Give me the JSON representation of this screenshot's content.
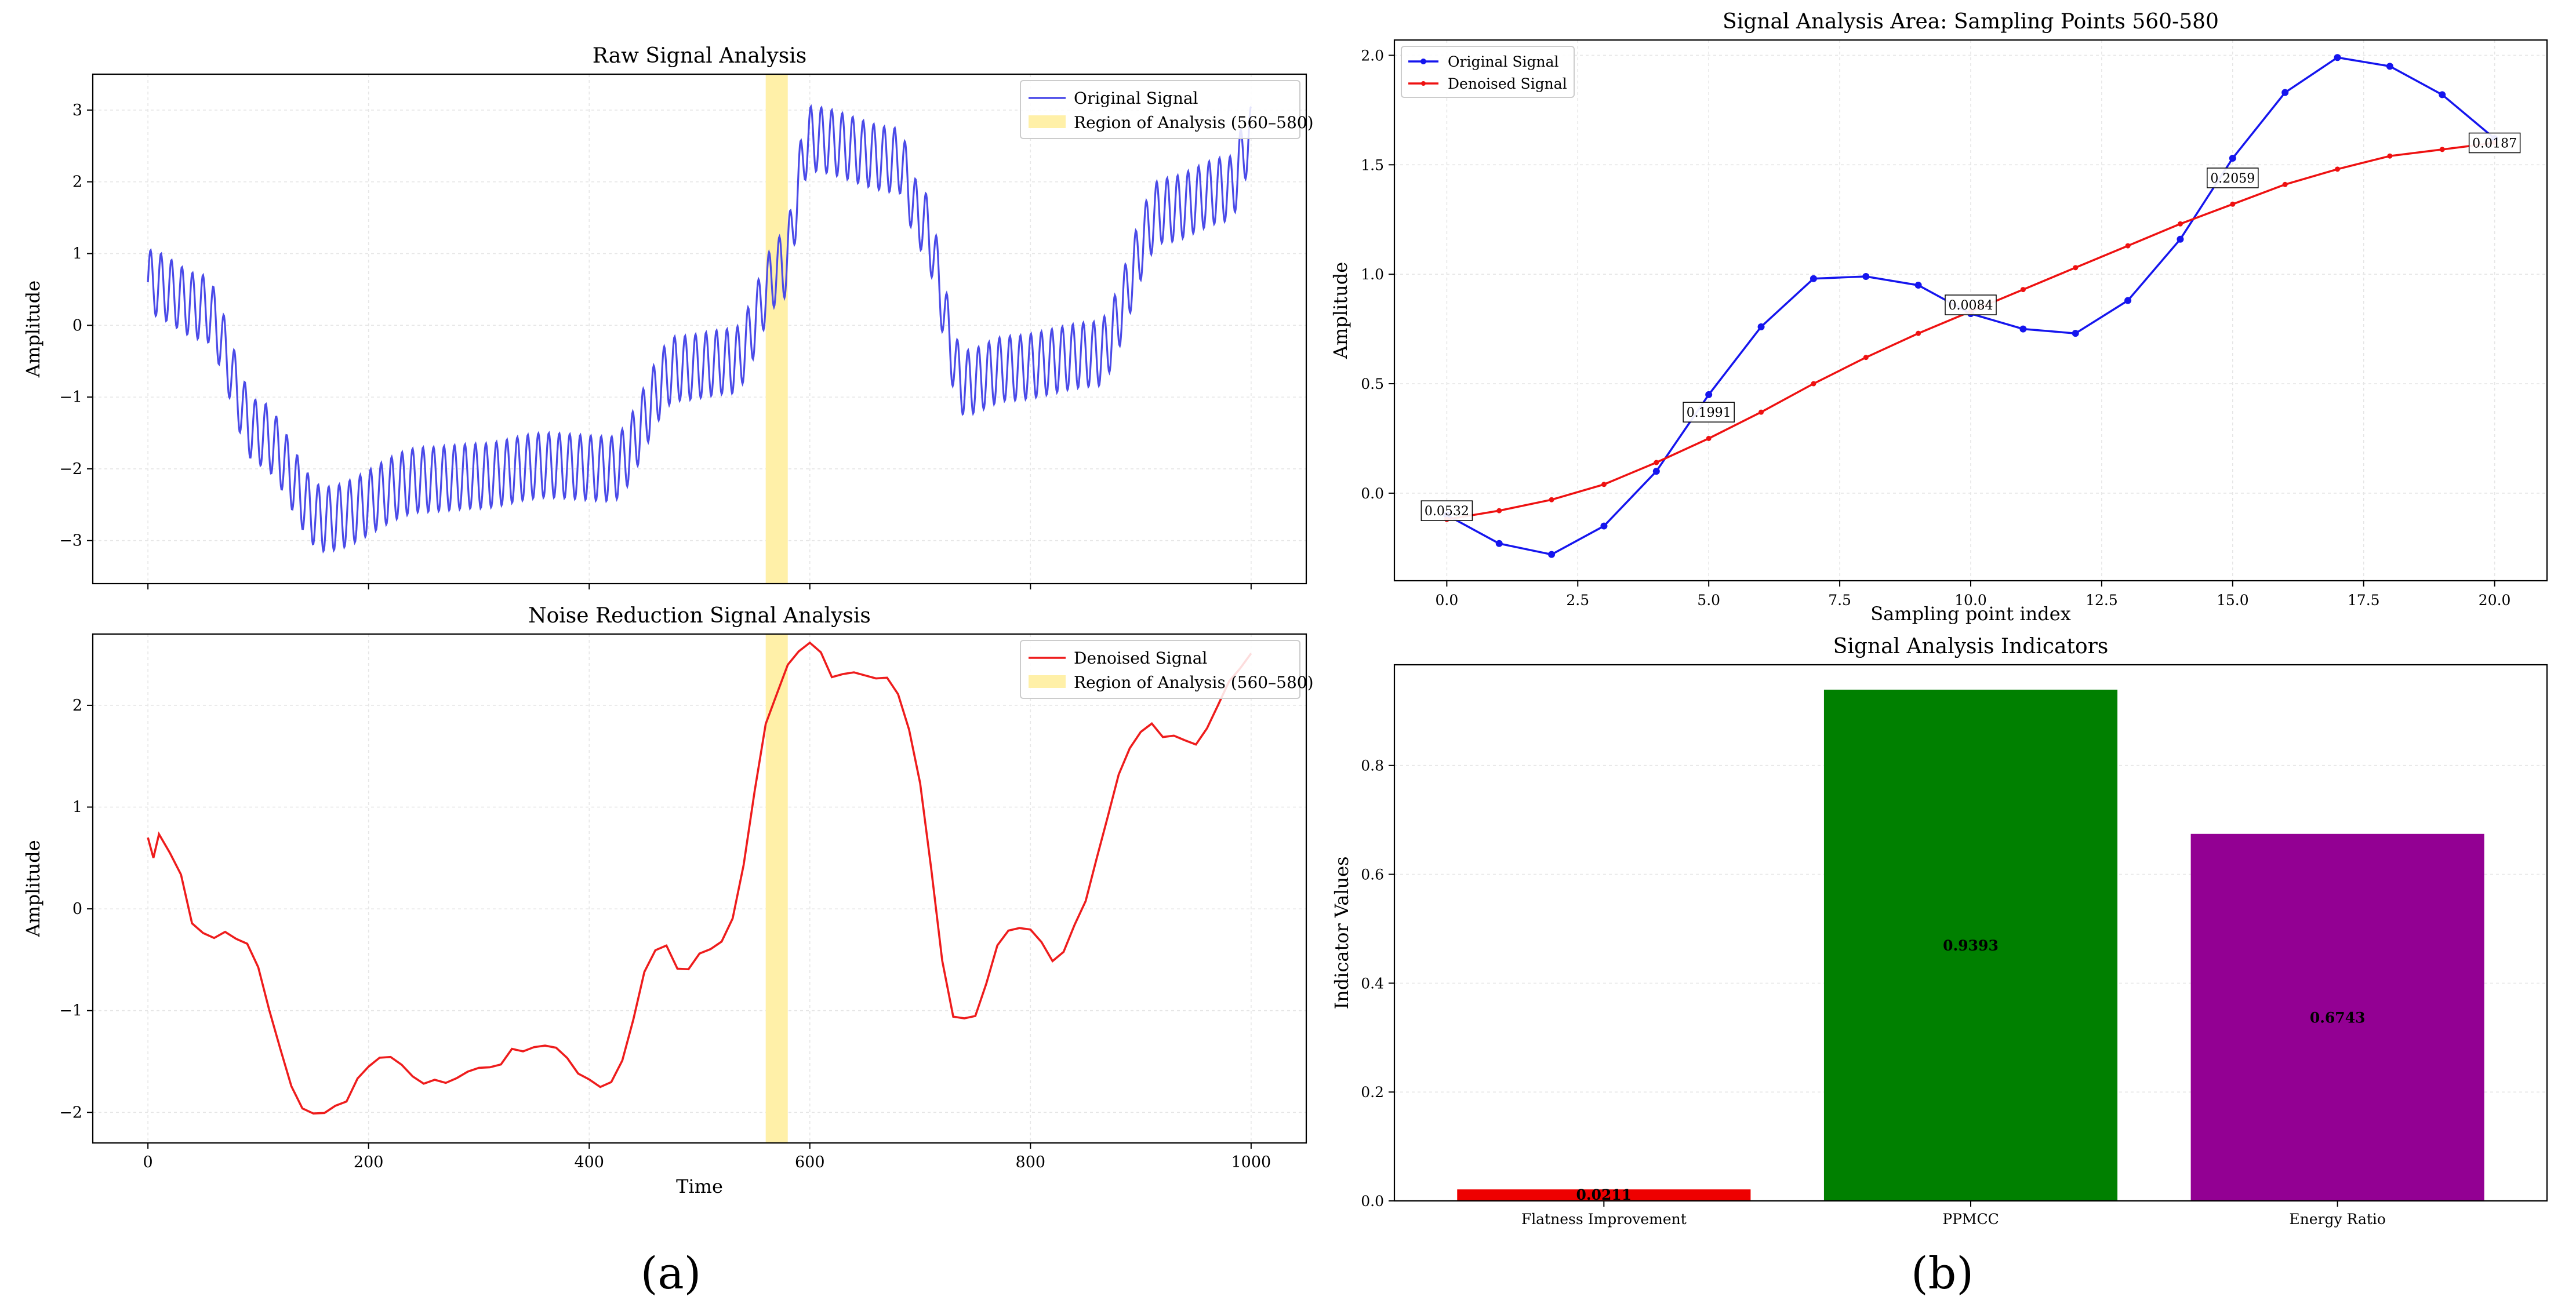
{
  "figure": {
    "label_a": "(a)",
    "label_b": "(b)"
  },
  "colors": {
    "original": "#4a4ae8",
    "denoised": "#ee1c1c",
    "region": "#fff0a8",
    "blue": "#1515ee",
    "red": "#ee1111",
    "green": "#008000",
    "purple": "#930093"
  },
  "chart_data": [
    {
      "id": "raw",
      "type": "line",
      "title": "Raw Signal Analysis",
      "xlabel": "",
      "ylabel": "Amplitude",
      "xlim": [
        -50,
        1050
      ],
      "ylim": [
        -3.6,
        3.5
      ],
      "xticks": [
        0,
        200,
        400,
        600,
        800,
        1000
      ],
      "xtick_labels_visible": false,
      "yticks": [
        -3,
        -2,
        -1,
        0,
        1,
        2,
        3
      ],
      "ytick_labels": [
        "−3",
        "−2",
        "−1",
        "0",
        "1",
        "2",
        "3"
      ],
      "region": [
        560,
        580
      ],
      "legend": [
        "Original Signal",
        "Region of Analysis (560–580)"
      ],
      "series": [
        {
          "name": "Original Signal",
          "base_x": [
            0,
            50,
            100,
            160,
            250,
            300,
            360,
            420,
            480,
            530,
            575,
            600,
            680,
            700,
            740,
            780,
            860,
            920,
            980,
            1000
          ],
          "base_y": [
            0.6,
            0.25,
            -1.5,
            -2.7,
            -2.15,
            -2.1,
            -1.95,
            -2.0,
            -0.6,
            -0.5,
            0.8,
            2.6,
            2.3,
            1.5,
            -0.8,
            -0.6,
            -0.4,
            1.6,
            1.9,
            2.6
          ],
          "oscillation_amplitude": 0.45,
          "oscillation_period": 9.5
        }
      ]
    },
    {
      "id": "denoised",
      "type": "line",
      "title": "Noise Reduction Signal Analysis",
      "xlabel": "Time",
      "ylabel": "Amplitude",
      "xlim": [
        -50,
        1050
      ],
      "ylim": [
        -2.3,
        2.7
      ],
      "xticks": [
        0,
        200,
        400,
        600,
        800,
        1000
      ],
      "xtick_labels": [
        "0",
        "200",
        "400",
        "600",
        "800",
        "1000"
      ],
      "yticks": [
        -2,
        -1,
        0,
        1,
        2
      ],
      "ytick_labels": [
        "−2",
        "−1",
        "0",
        "1",
        "2"
      ],
      "region": [
        560,
        580
      ],
      "legend": [
        "Denoised Signal",
        "Region of Analysis (560–580)"
      ],
      "series": [
        {
          "name": "Denoised Signal",
          "x": [
            0,
            5,
            10,
            20,
            30,
            40,
            50,
            60,
            70,
            80,
            90,
            100,
            110,
            120,
            130,
            140,
            150,
            160,
            170,
            180,
            190,
            200,
            210,
            220,
            230,
            240,
            250,
            260,
            270,
            280,
            290,
            300,
            310,
            320,
            330,
            340,
            350,
            360,
            370,
            380,
            390,
            400,
            410,
            420,
            430,
            440,
            450,
            460,
            470,
            480,
            490,
            500,
            510,
            520,
            530,
            540,
            550,
            560,
            570,
            580,
            590,
            600,
            610,
            620,
            630,
            640,
            650,
            660,
            670,
            680,
            690,
            700,
            710,
            720,
            730,
            740,
            750,
            760,
            770,
            780,
            790,
            800,
            810,
            820,
            830,
            840,
            850,
            860,
            870,
            880,
            890,
            900,
            910,
            920,
            930,
            940,
            950,
            960,
            970,
            980,
            990,
            1000
          ],
          "y": [
            0.7,
            0.5,
            0.75,
            0.55,
            0.3,
            -0.1,
            -0.25,
            -0.3,
            -0.22,
            -0.28,
            -0.35,
            -0.6,
            -0.95,
            -1.4,
            -1.75,
            -1.95,
            -2.0,
            -2.02,
            -1.95,
            -1.85,
            -1.7,
            -1.55,
            -1.45,
            -1.45,
            -1.55,
            -1.65,
            -1.68,
            -1.72,
            -1.7,
            -1.65,
            -1.6,
            -1.58,
            -1.55,
            -1.5,
            -1.42,
            -1.38,
            -1.35,
            -1.35,
            -1.38,
            -1.45,
            -1.6,
            -1.72,
            -1.72,
            -1.7,
            -1.5,
            -1.1,
            -0.6,
            -0.4,
            -0.4,
            -0.55,
            -0.6,
            -0.45,
            -0.4,
            -0.3,
            -0.1,
            0.4,
            1.2,
            1.8,
            2.1,
            2.4,
            2.55,
            2.6,
            2.5,
            2.32,
            2.28,
            2.32,
            2.3,
            2.28,
            2.25,
            2.1,
            1.8,
            1.2,
            0.4,
            -0.5,
            -1.05,
            -1.1,
            -1.05,
            -0.7,
            -0.4,
            -0.2,
            -0.18,
            -0.2,
            -0.35,
            -0.5,
            -0.4,
            -0.2,
            0.1,
            0.5,
            0.9,
            1.3,
            1.6,
            1.75,
            1.78,
            1.72,
            1.7,
            1.65,
            1.6,
            1.8,
            2.0,
            2.2,
            2.4,
            2.5
          ]
        }
      ]
    },
    {
      "id": "area",
      "type": "line",
      "title": "Signal Analysis Area: Sampling Points 560-580",
      "xlabel": "Sampling point index",
      "ylabel": "Amplitude",
      "xlim": [
        -1,
        21
      ],
      "ylim": [
        -0.4,
        2.07
      ],
      "xticks": [
        0,
        2.5,
        5,
        7.5,
        10,
        12.5,
        15,
        17.5,
        20
      ],
      "xtick_labels": [
        "0.0",
        "2.5",
        "5.0",
        "7.5",
        "10.0",
        "12.5",
        "15.0",
        "17.5",
        "20.0"
      ],
      "yticks": [
        0,
        0.5,
        1,
        1.5,
        2
      ],
      "ytick_labels": [
        "0.0",
        "0.5",
        "1.0",
        "1.5",
        "2.0"
      ],
      "legend": [
        "Original Signal",
        "Denoised Signal"
      ],
      "x": [
        0,
        1,
        2,
        3,
        4,
        5,
        6,
        7,
        8,
        9,
        10,
        11,
        12,
        13,
        14,
        15,
        16,
        17,
        18,
        19,
        20
      ],
      "series": [
        {
          "name": "Original Signal",
          "values": [
            -0.1,
            -0.23,
            -0.28,
            -0.15,
            0.1,
            0.45,
            0.76,
            0.98,
            0.99,
            0.95,
            0.82,
            0.75,
            0.73,
            0.88,
            1.16,
            1.53,
            1.83,
            1.99,
            1.95,
            1.82,
            1.62
          ]
        },
        {
          "name": "Denoised Signal",
          "values": [
            -0.12,
            -0.08,
            -0.03,
            0.04,
            0.14,
            0.25,
            0.37,
            0.5,
            0.62,
            0.73,
            0.83,
            0.93,
            1.03,
            1.13,
            1.23,
            1.32,
            1.41,
            1.48,
            1.54,
            1.57,
            1.6
          ]
        }
      ],
      "annotations": [
        {
          "x": 0,
          "y": -0.08,
          "text": "0.0532"
        },
        {
          "x": 5,
          "y": 0.37,
          "text": "0.1991"
        },
        {
          "x": 10,
          "y": 0.86,
          "text": "0.0084"
        },
        {
          "x": 15,
          "y": 1.44,
          "text": "0.2059"
        },
        {
          "x": 20,
          "y": 1.6,
          "text": "0.0187"
        }
      ]
    },
    {
      "id": "indicators",
      "type": "bar",
      "title": "Signal Analysis Indicators",
      "xlabel": "",
      "ylabel": "Indicator Values",
      "ylim": [
        0,
        0.985
      ],
      "yticks": [
        0,
        0.2,
        0.4,
        0.6,
        0.8
      ],
      "ytick_labels": [
        "0.0",
        "0.2",
        "0.4",
        "0.6",
        "0.8"
      ],
      "categories": [
        "Flatness Improvement",
        "PPMCC",
        "Energy Ratio"
      ],
      "values": [
        0.0211,
        0.9393,
        0.6743
      ],
      "value_labels": [
        "0.0211",
        "0.9393",
        "0.6743"
      ],
      "bar_colors": [
        "#ee0000",
        "#008000",
        "#930093"
      ]
    }
  ]
}
